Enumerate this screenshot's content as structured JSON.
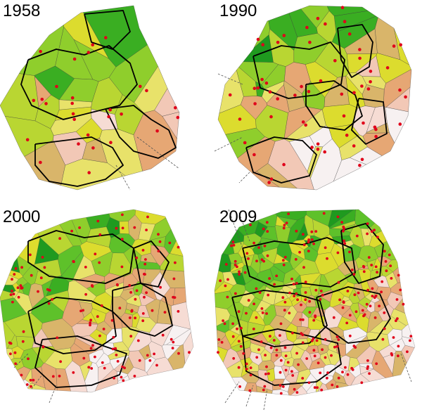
{
  "panels": [
    {
      "year": "1958",
      "seeds": 28,
      "density": "low"
    },
    {
      "year": "1990",
      "seeds": 60,
      "density": "medium"
    },
    {
      "year": "2000",
      "seeds": 140,
      "density": "high"
    },
    {
      "year": "2009",
      "seeds": 260,
      "density": "very-high"
    }
  ],
  "colors": {
    "cell_palette": [
      "#1f9a1f",
      "#3aae22",
      "#5ec12a",
      "#8fce2c",
      "#b9d632",
      "#dcdc2e",
      "#e8e26a",
      "#d9b56a",
      "#e6a774",
      "#f2c8b6",
      "#f6dcd4",
      "#f7f1f1"
    ],
    "seed": "#e0001a",
    "outline": "#000000",
    "edges": "#333333",
    "background": "#ffffff"
  }
}
